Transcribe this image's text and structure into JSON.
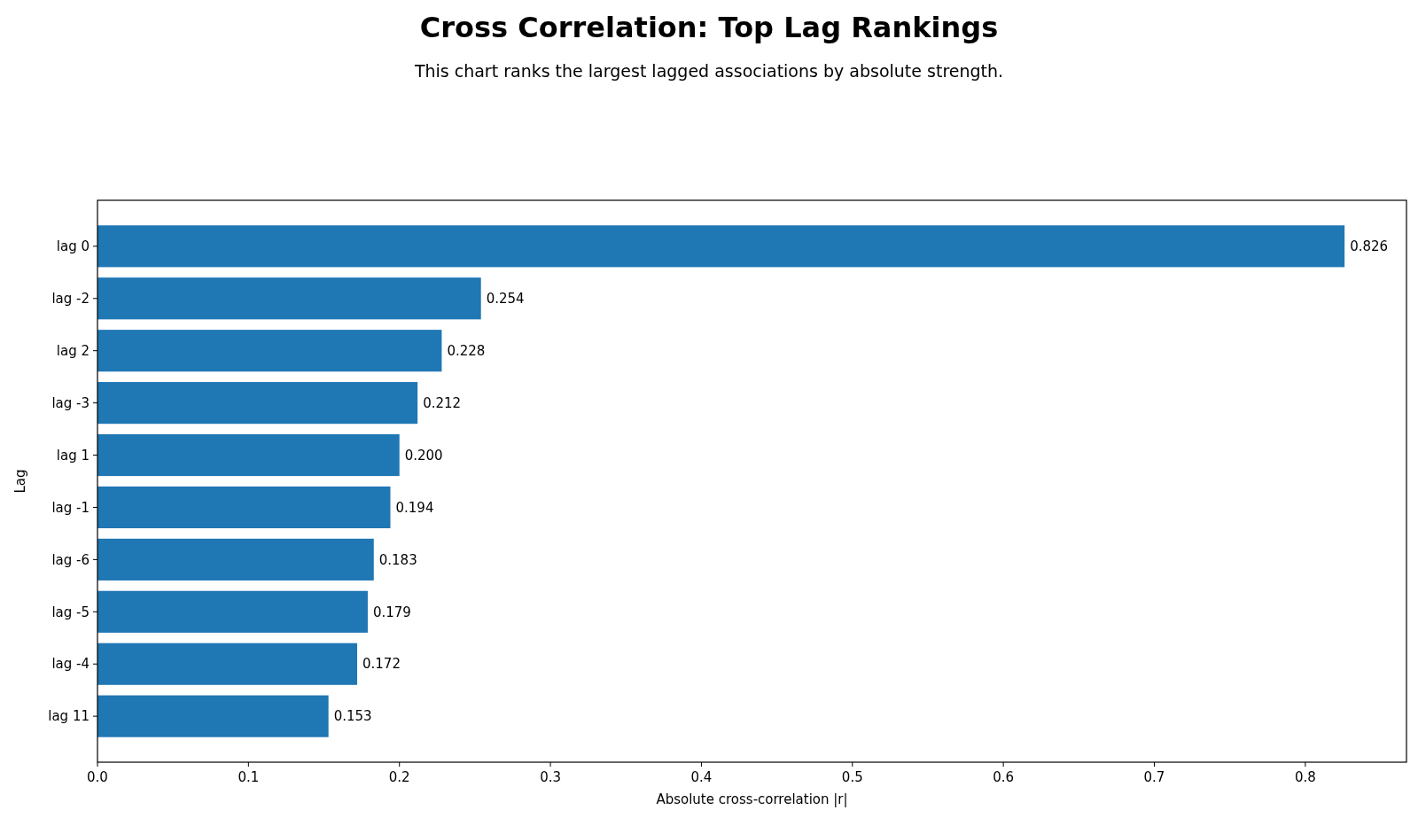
{
  "chart_data": {
    "type": "bar",
    "orientation": "horizontal",
    "title": "Cross Correlation: Top Lag Rankings",
    "subtitle": "This chart ranks the largest lagged associations by absolute strength.",
    "xlabel": "Absolute cross-correlation |r|",
    "ylabel": "Lag",
    "categories": [
      "lag 0",
      "lag -2",
      "lag 2",
      "lag -3",
      "lag 1",
      "lag -1",
      "lag -6",
      "lag -5",
      "lag -4",
      "lag 11"
    ],
    "values": [
      0.826,
      0.254,
      0.228,
      0.212,
      0.2,
      0.194,
      0.183,
      0.179,
      0.172,
      0.153
    ],
    "value_labels": [
      "0.826",
      "0.254",
      "0.228",
      "0.212",
      "0.200",
      "0.194",
      "0.183",
      "0.179",
      "0.172",
      "0.153"
    ],
    "color": "#1f77b4",
    "xlim": [
      0,
      0.867
    ],
    "xticks": [
      {
        "value": 0,
        "label": "0.0"
      },
      0.1,
      0.2,
      0.3,
      0.4,
      0.5,
      0.6,
      0.7,
      0.8
    ],
    "grid": false
  }
}
